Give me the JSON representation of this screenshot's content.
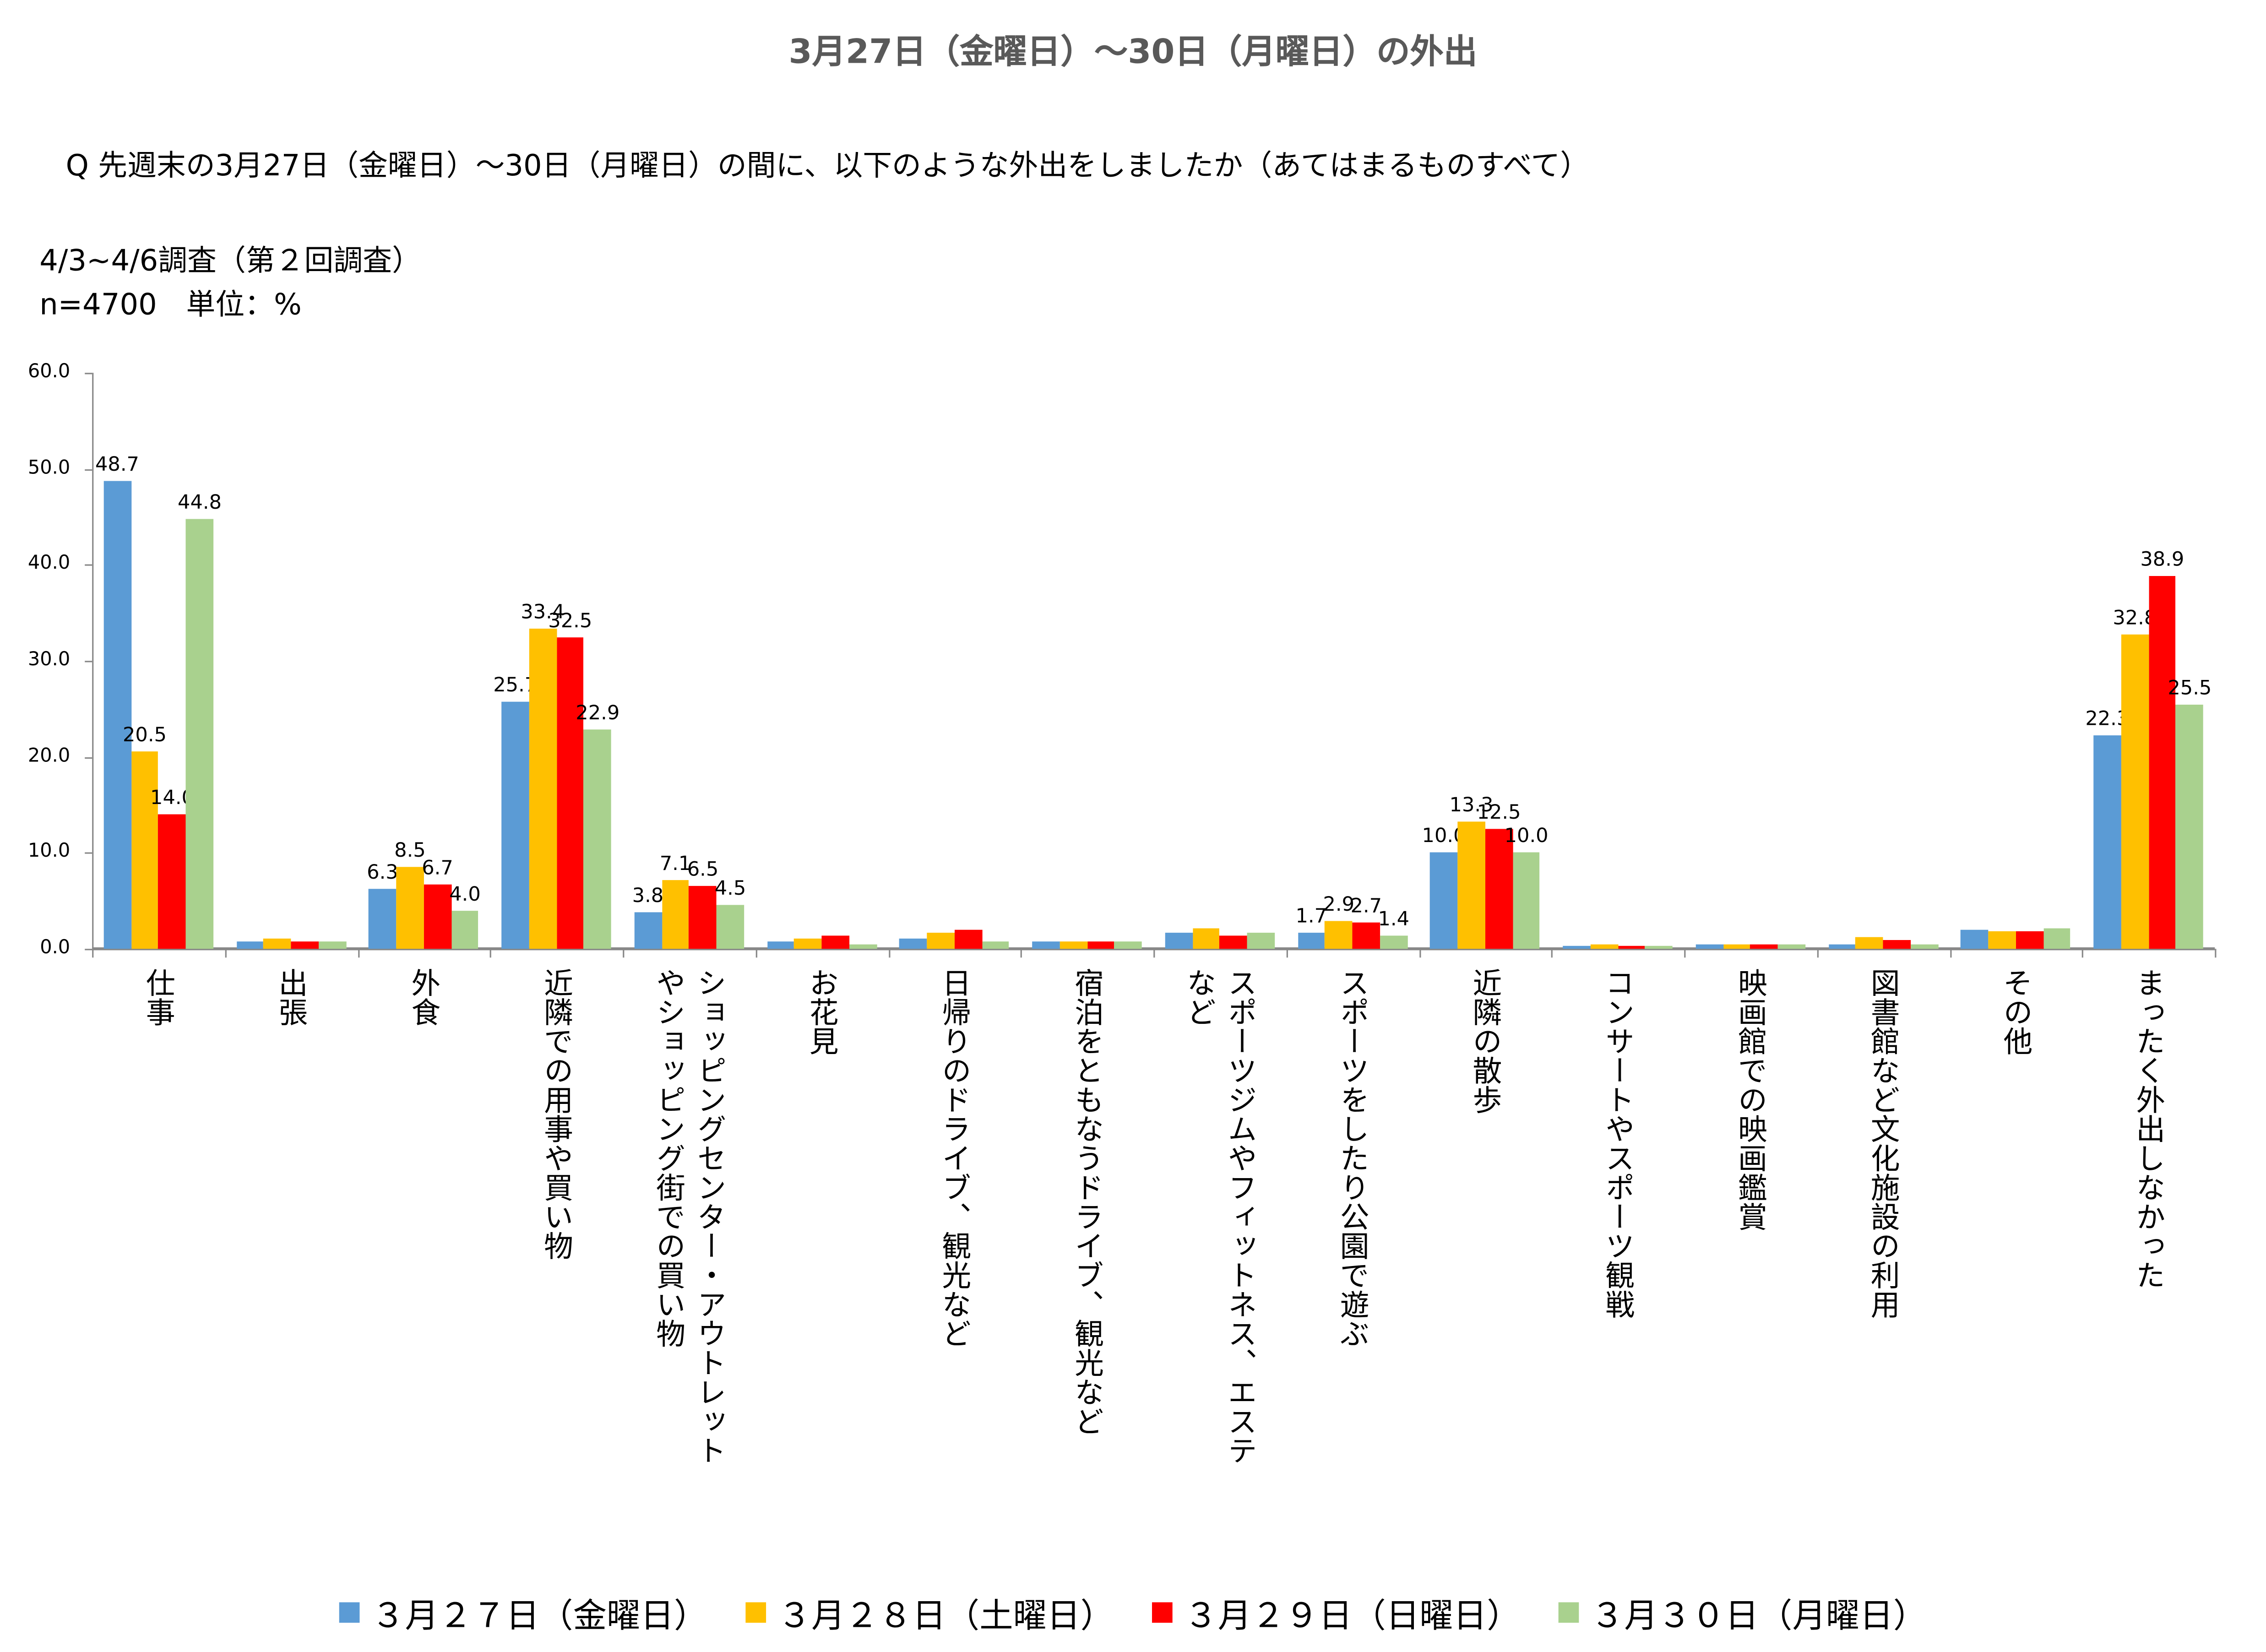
{
  "title": "3月27日（金曜日）～30日（月曜日）の外出",
  "question": "Q 先週末の3月27日（金曜日）～30日（月曜日）の間に、以下のような外出をしましたか（あてはまるものすべて）",
  "survey": "4/3~4/6調査（第２回調査）",
  "sample": "n=4700　単位：%",
  "chart_data": {
    "type": "bar",
    "title": "3月27日（金曜日）～30日（月曜日）の外出",
    "ylim": [
      0,
      60
    ],
    "yticks": [
      "0.0",
      "10.0",
      "20.0",
      "30.0",
      "40.0",
      "50.0",
      "60.0"
    ],
    "categories": [
      [
        "仕事"
      ],
      [
        "出張"
      ],
      [
        "外食"
      ],
      [
        "近隣での用事や買い物"
      ],
      [
        "ショッピングセンター・アウトレット",
        "やショッピング街での買い物"
      ],
      [
        "お花見"
      ],
      [
        "日帰りのドライブ、観光など"
      ],
      [
        "宿泊をともなうドライブ、観光など"
      ],
      [
        "スポーツジムやフィットネス、エステ",
        "など"
      ],
      [
        "スポーツをしたり公園で遊ぶ"
      ],
      [
        "近隣の散歩"
      ],
      [
        "コンサートやスポーツ観戦"
      ],
      [
        "映画館での映画鑑賞"
      ],
      [
        "図書館など文化施設の利用"
      ],
      [
        "その他"
      ],
      [
        "まったく外出しなかった"
      ]
    ],
    "series": [
      {
        "name": "３月２７日（金曜日）",
        "color": "#5B9BD5",
        "values": [
          48.7,
          0.8,
          6.3,
          25.7,
          3.8,
          0.7,
          1.1,
          0.7,
          1.7,
          1.7,
          10.0,
          0.3,
          0.4,
          0.5,
          2.0,
          22.3
        ],
        "labels": [
          "48.7",
          null,
          "6.3",
          "25.7",
          "3.8",
          null,
          null,
          null,
          null,
          "1.7",
          "10.0",
          null,
          null,
          null,
          null,
          "22.3"
        ]
      },
      {
        "name": "３月２８日（土曜日）",
        "color": "#FFC000",
        "values": [
          20.5,
          1.0,
          8.5,
          33.4,
          7.1,
          1.1,
          1.7,
          0.8,
          2.1,
          2.9,
          13.3,
          0.5,
          0.4,
          1.2,
          1.8,
          32.8
        ],
        "labels": [
          "20.5",
          null,
          "8.5",
          "33.4",
          "7.1",
          null,
          null,
          null,
          null,
          "2.9",
          "13.3",
          null,
          null,
          null,
          null,
          "32.8"
        ]
      },
      {
        "name": "３月２９日（日曜日）",
        "color": "#FF0000",
        "values": [
          14.0,
          0.8,
          6.7,
          32.5,
          6.5,
          1.3,
          2.0,
          0.8,
          1.3,
          2.7,
          12.5,
          0.3,
          0.5,
          0.9,
          1.8,
          38.9
        ],
        "labels": [
          "14.0",
          null,
          "6.7",
          "32.5",
          "6.5",
          null,
          null,
          null,
          null,
          "2.7",
          "12.5",
          null,
          null,
          null,
          null,
          "38.9"
        ]
      },
      {
        "name": "３月３０日（月曜日）",
        "color": "#A9D18E",
        "values": [
          44.8,
          0.8,
          4.0,
          22.9,
          4.5,
          0.5,
          0.8,
          0.8,
          1.7,
          1.4,
          10.0,
          0.3,
          0.4,
          0.4,
          2.1,
          25.5
        ],
        "labels": [
          "44.8",
          null,
          "4.0",
          "22.9",
          "4.5",
          null,
          null,
          null,
          null,
          "1.4",
          "10.0",
          null,
          null,
          null,
          null,
          "25.5"
        ]
      }
    ],
    "legend": "bottom",
    "grid": false
  }
}
